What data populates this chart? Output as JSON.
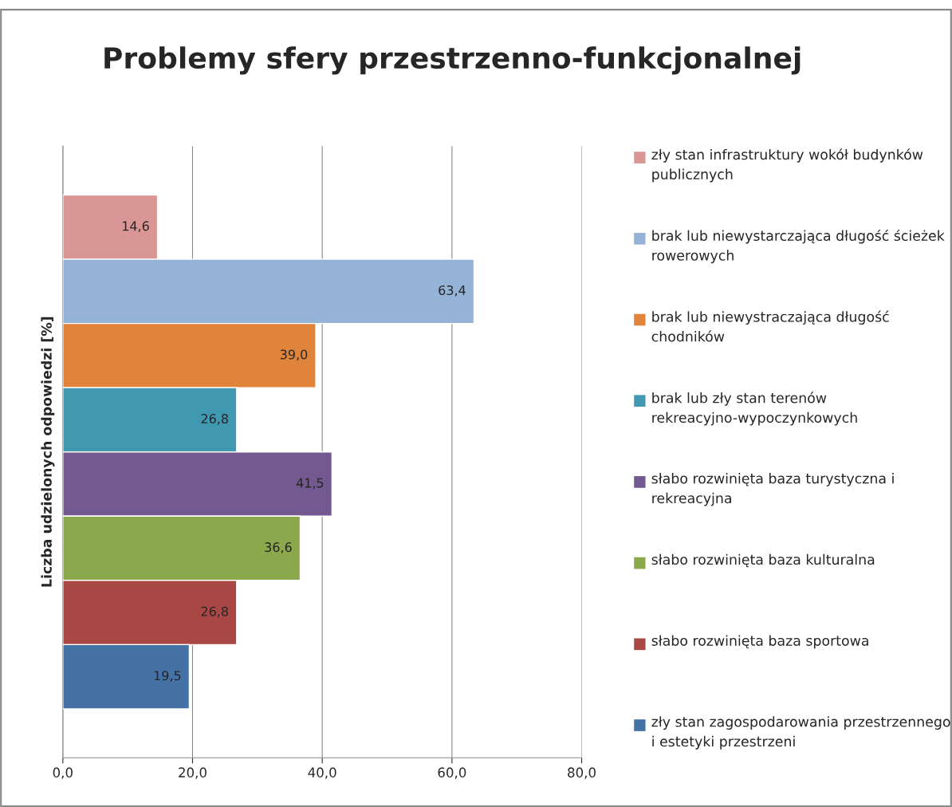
{
  "chart_data": {
    "type": "bar",
    "orientation": "horizontal",
    "title": "Problemy sfery przestrzenno-funkcjonalnej",
    "ylabel": "Liczba udzielonych odpowiedzi [%]",
    "categories": [
      null
    ],
    "series": [
      {
        "name": "zły stan infrastruktury wokół budynków publicznych",
        "color": "#d99694",
        "values": [
          14.6
        ],
        "value_labels": [
          "14,6"
        ]
      },
      {
        "name": "brak lub niewystarczająca długość ścieżek rowerowych",
        "color": "#95b3d7",
        "values": [
          63.4
        ],
        "value_labels": [
          "63,4"
        ]
      },
      {
        "name": "brak lub niewystraczająca długość chodników",
        "color": "#e0843c",
        "values": [
          39.0
        ],
        "value_labels": [
          "39,0"
        ]
      },
      {
        "name": "brak lub zły stan terenów rekreacyjno-wypoczynkowych",
        "color": "#4099b0",
        "values": [
          26.8
        ],
        "value_labels": [
          "26,8"
        ]
      },
      {
        "name": "słabo rozwinięta baza turystyczna i rekreacyjna",
        "color": "#72598f",
        "values": [
          41.5
        ],
        "value_labels": [
          "41,5"
        ]
      },
      {
        "name": "słabo rozwinięta baza kulturalna",
        "color": "#8ba84d",
        "values": [
          36.6
        ],
        "value_labels": [
          "36,6"
        ]
      },
      {
        "name": "słabo rozwinięta baza sportowa",
        "color": "#a94745",
        "values": [
          26.8
        ],
        "value_labels": [
          "26,8"
        ]
      },
      {
        "name": "zły stan zagospodarowania przestrzennego i estetyki przestrzeni",
        "color": "#4471a6",
        "values": [
          19.5
        ],
        "value_labels": [
          "19,5"
        ]
      }
    ],
    "xlim": [
      0,
      80
    ],
    "xticks": [
      {
        "value": 0,
        "label": "0,0"
      },
      {
        "value": 20,
        "label": "20,0"
      },
      {
        "value": 40,
        "label": "40,0"
      },
      {
        "value": 60,
        "label": "60,0"
      },
      {
        "value": 80,
        "label": "80,0"
      }
    ],
    "grid": "x",
    "legend": "right"
  }
}
